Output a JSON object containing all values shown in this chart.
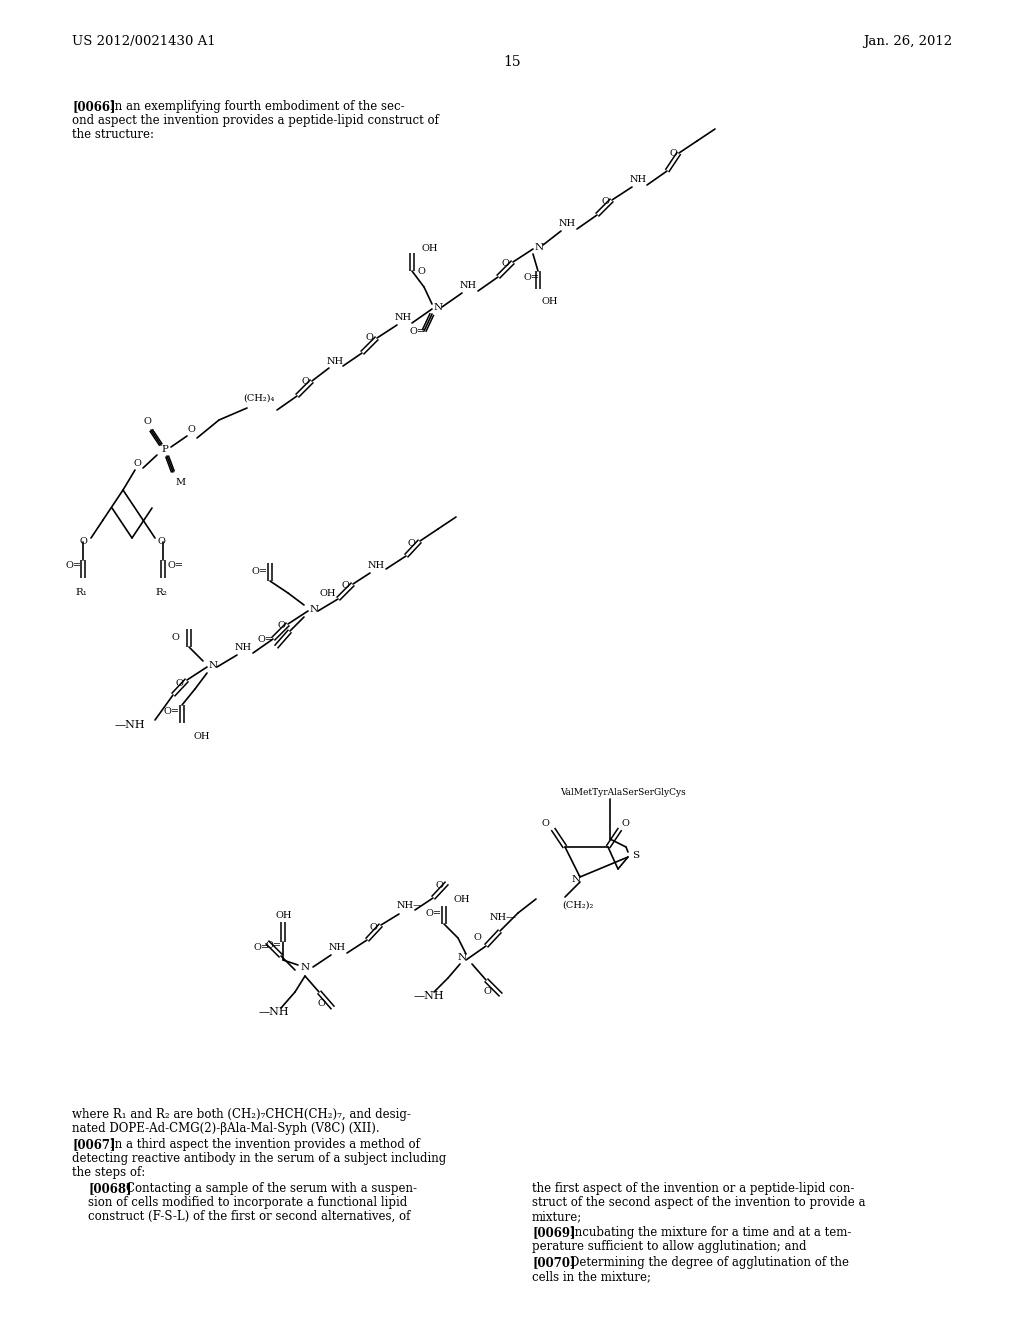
{
  "bg": "#ffffff",
  "header_left": "US 2012/0021430 A1",
  "header_right": "Jan. 26, 2012",
  "page_num": "15"
}
